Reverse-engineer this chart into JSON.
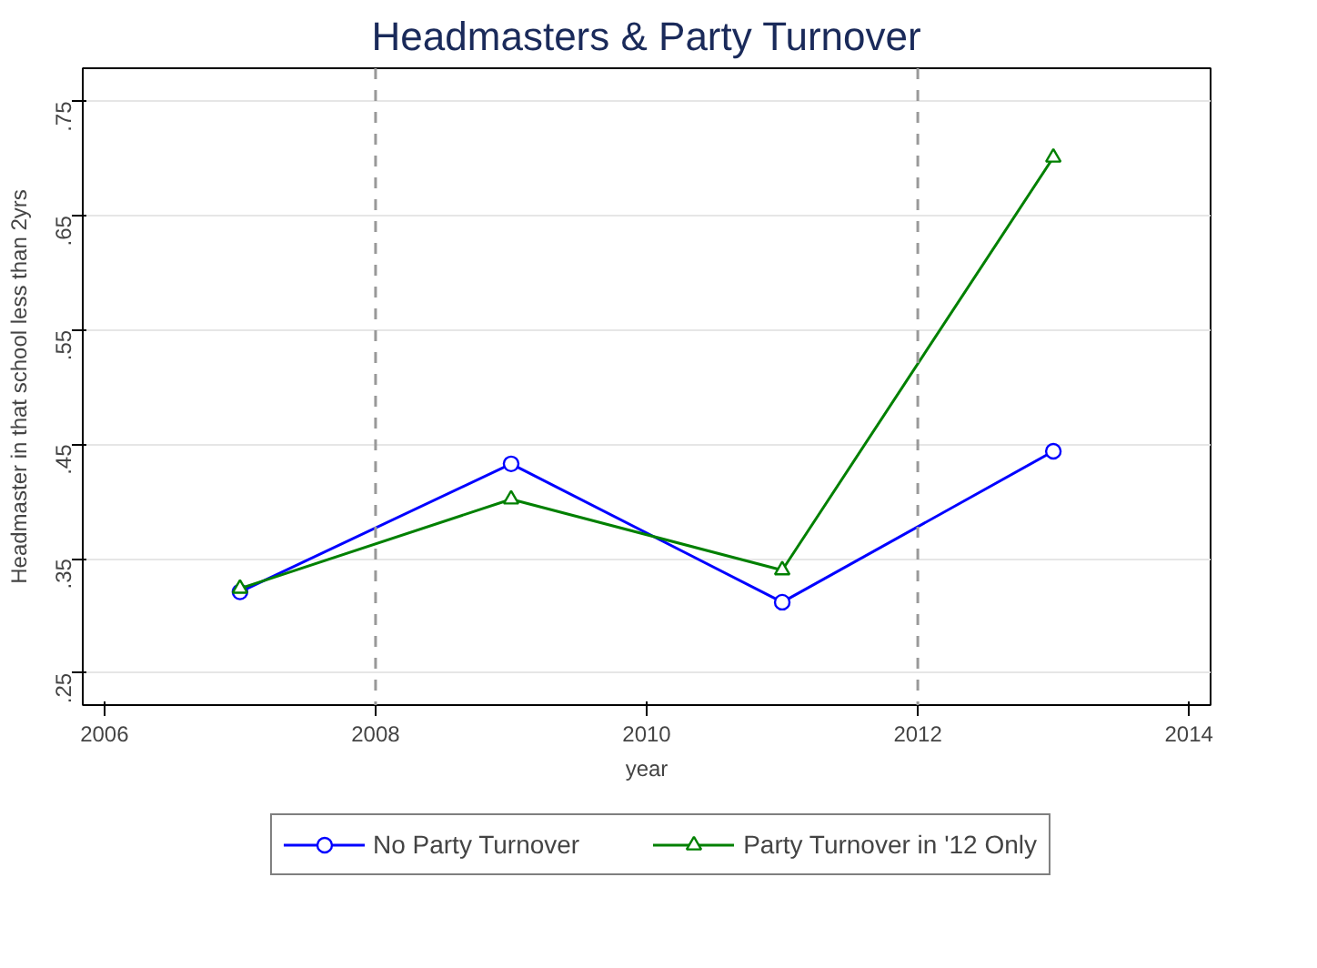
{
  "chart_data": {
    "type": "line",
    "title": "Headmasters & Party Turnover",
    "xlabel": "year",
    "ylabel": "Headmaster in that school less than 2yrs",
    "x": [
      2007,
      2009,
      2011,
      2013
    ],
    "series": [
      {
        "name": "No Party Turnover",
        "color": "#0000ff",
        "marker": "circle",
        "values": [
          0.321,
          0.433,
          0.312,
          0.444
        ]
      },
      {
        "name": "Party Turnover in '12 Only",
        "color": "#008000",
        "marker": "triangle",
        "values": [
          0.324,
          0.402,
          0.34,
          0.701
        ]
      }
    ],
    "xlim": [
      2005.84,
      2014.16
    ],
    "ylim": [
      0.222,
      0.779
    ],
    "xticks": [
      2006,
      2008,
      2010,
      2012,
      2014
    ],
    "yticks": [
      {
        "value": 0.25,
        "label": ".25"
      },
      {
        "value": 0.35,
        "label": ".35"
      },
      {
        "value": 0.45,
        "label": ".45"
      },
      {
        "value": 0.55,
        "label": ".55"
      },
      {
        "value": 0.65,
        "label": ".65"
      },
      {
        "value": 0.75,
        "label": ".75"
      }
    ],
    "ref_lines": [
      {
        "axis": "x",
        "value": 2008,
        "color": "#999999",
        "line_style": "dashed"
      },
      {
        "axis": "x",
        "value": 2012,
        "color": "#999999",
        "line_style": "dashed"
      }
    ],
    "grid": "y",
    "legend": "bottom",
    "line_style": "solid"
  }
}
